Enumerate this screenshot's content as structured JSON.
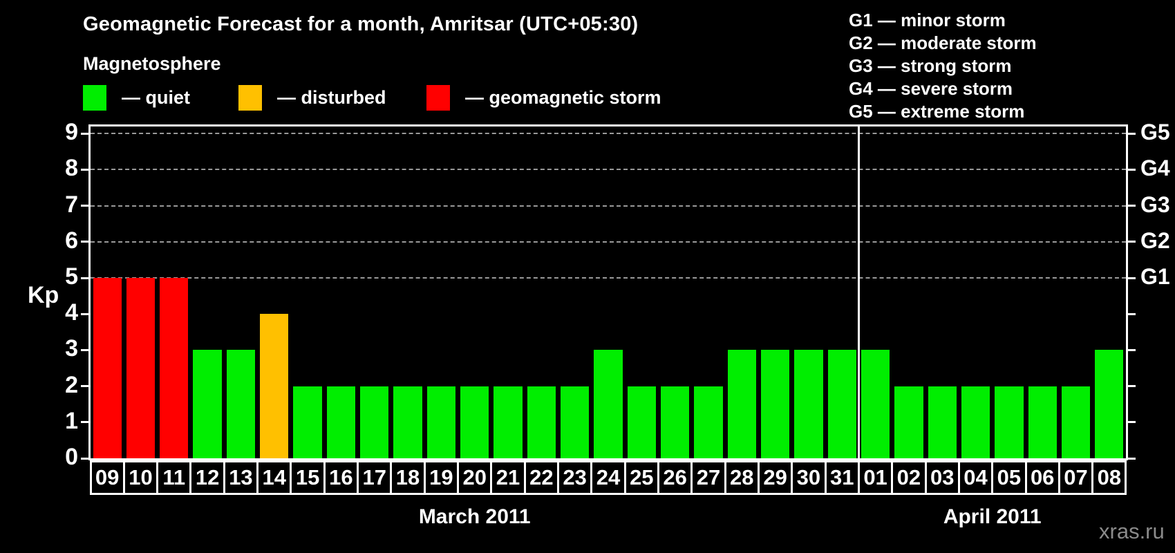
{
  "chart_data": {
    "type": "bar",
    "title": "Geomagnetic Forecast for a month, Amritsar (UTC+05:30)",
    "subtitle": "Magnetosphere",
    "ylabel": "Kp",
    "ylim": [
      0,
      9.2
    ],
    "yticks": [
      0,
      1,
      2,
      3,
      4,
      5,
      6,
      7,
      8,
      9
    ],
    "gridlines_at": [
      5,
      6,
      7,
      8,
      9
    ],
    "grid": "dashed horizontal lines at storm levels G1-G5",
    "legend_position": "top-left",
    "legend": [
      {
        "key": "quiet",
        "label": "— quiet",
        "color": "#00ee00"
      },
      {
        "key": "disturbed",
        "label": "— disturbed",
        "color": "#ffc000"
      },
      {
        "key": "storm",
        "label": "— geomagnetic storm",
        "color": "#ff0000"
      }
    ],
    "g_scale_legend": [
      "G1 — minor storm",
      "G2 — moderate storm",
      "G3 — strong storm",
      "G4 — severe storm",
      "G5 — extreme storm"
    ],
    "right_axis_labels": [
      {
        "kp": 5,
        "label": "G1"
      },
      {
        "kp": 6,
        "label": "G2"
      },
      {
        "kp": 7,
        "label": "G3"
      },
      {
        "kp": 8,
        "label": "G4"
      },
      {
        "kp": 9,
        "label": "G5"
      }
    ],
    "months": [
      {
        "label": "March 2011",
        "days": 23
      },
      {
        "label": "April 2011",
        "days": 8
      }
    ],
    "colors": {
      "quiet": "#00ee00",
      "disturbed": "#ffc000",
      "storm": "#ff0000"
    },
    "bars": [
      {
        "day": "09",
        "kp": 5,
        "status": "storm"
      },
      {
        "day": "10",
        "kp": 5,
        "status": "storm"
      },
      {
        "day": "11",
        "kp": 5,
        "status": "storm"
      },
      {
        "day": "12",
        "kp": 3,
        "status": "quiet"
      },
      {
        "day": "13",
        "kp": 3,
        "status": "quiet"
      },
      {
        "day": "14",
        "kp": 4,
        "status": "disturbed"
      },
      {
        "day": "15",
        "kp": 2,
        "status": "quiet"
      },
      {
        "day": "16",
        "kp": 2,
        "status": "quiet"
      },
      {
        "day": "17",
        "kp": 2,
        "status": "quiet"
      },
      {
        "day": "18",
        "kp": 2,
        "status": "quiet"
      },
      {
        "day": "19",
        "kp": 2,
        "status": "quiet"
      },
      {
        "day": "20",
        "kp": 2,
        "status": "quiet"
      },
      {
        "day": "21",
        "kp": 2,
        "status": "quiet"
      },
      {
        "day": "22",
        "kp": 2,
        "status": "quiet"
      },
      {
        "day": "23",
        "kp": 2,
        "status": "quiet"
      },
      {
        "day": "24",
        "kp": 3,
        "status": "quiet"
      },
      {
        "day": "25",
        "kp": 2,
        "status": "quiet"
      },
      {
        "day": "26",
        "kp": 2,
        "status": "quiet"
      },
      {
        "day": "27",
        "kp": 2,
        "status": "quiet"
      },
      {
        "day": "28",
        "kp": 3,
        "status": "quiet"
      },
      {
        "day": "29",
        "kp": 3,
        "status": "quiet"
      },
      {
        "day": "30",
        "kp": 3,
        "status": "quiet"
      },
      {
        "day": "31",
        "kp": 3,
        "status": "quiet"
      },
      {
        "day": "01",
        "kp": 3,
        "status": "quiet"
      },
      {
        "day": "02",
        "kp": 2,
        "status": "quiet"
      },
      {
        "day": "03",
        "kp": 2,
        "status": "quiet"
      },
      {
        "day": "04",
        "kp": 2,
        "status": "quiet"
      },
      {
        "day": "05",
        "kp": 2,
        "status": "quiet"
      },
      {
        "day": "06",
        "kp": 2,
        "status": "quiet"
      },
      {
        "day": "07",
        "kp": 2,
        "status": "quiet"
      },
      {
        "day": "08",
        "kp": 3,
        "status": "quiet"
      }
    ],
    "watermark": "xras.ru"
  }
}
